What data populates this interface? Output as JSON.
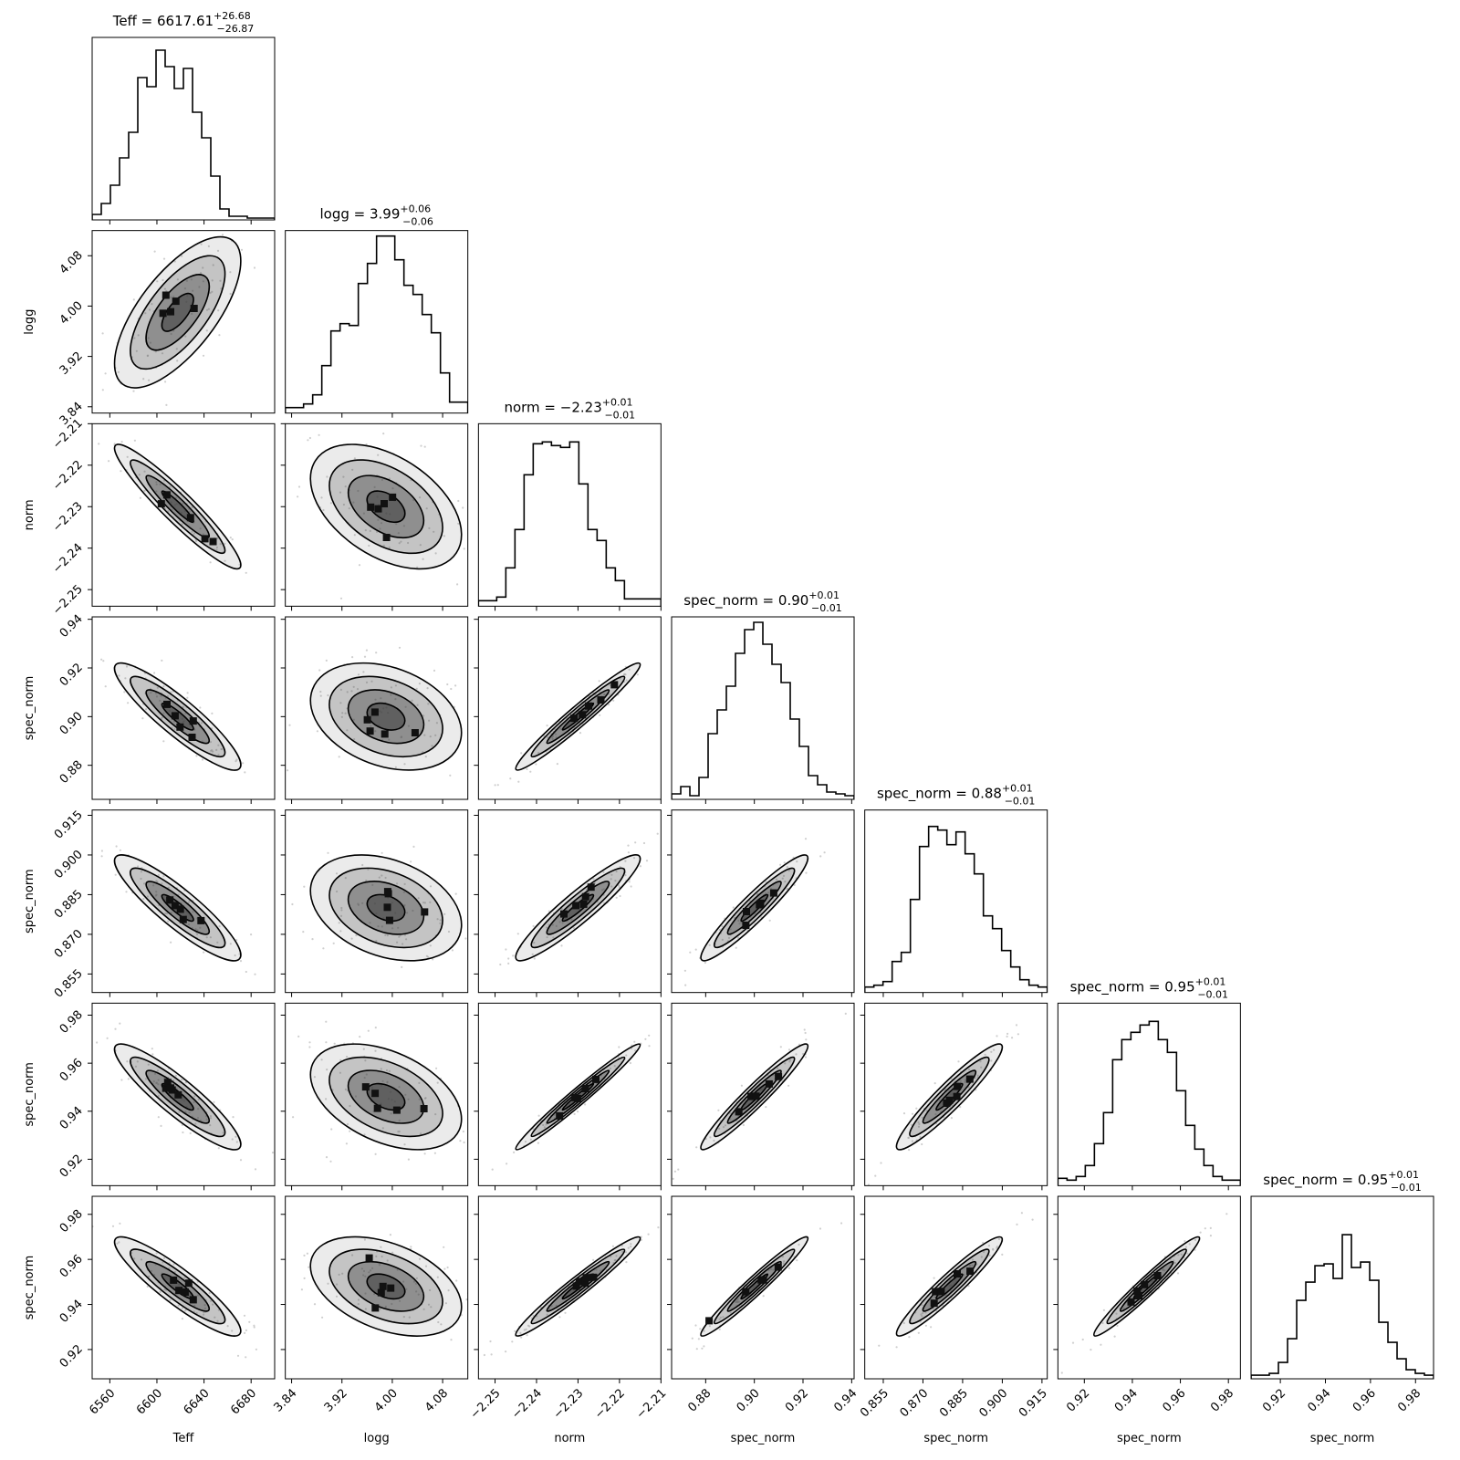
{
  "chart_data": {
    "type": "corner",
    "parameters": [
      {
        "key": "Teff",
        "label": "Teff",
        "title": "Teff = 6617.61",
        "err_plus": "+26.68",
        "err_minus": "−26.87",
        "range": [
          6545,
          6700
        ],
        "ticks": [
          6560,
          6600,
          6640,
          6680
        ],
        "tick_labels": [
          "6560",
          "6600",
          "6640",
          "6680"
        ],
        "median": 6617.61,
        "sigma": 26.8
      },
      {
        "key": "logg",
        "label": "logg",
        "title": "logg = 3.99",
        "err_plus": "+0.06",
        "err_minus": "−0.06",
        "range": [
          3.83,
          4.12
        ],
        "ticks": [
          3.84,
          3.92,
          4.0,
          4.08
        ],
        "tick_labels": [
          "3.84",
          "3.92",
          "4.00",
          "4.08"
        ],
        "median": 3.99,
        "sigma": 0.06
      },
      {
        "key": "norm",
        "label": "norm",
        "title": "norm = −2.23",
        "err_plus": "+0.01",
        "err_minus": "−0.01",
        "range": [
          -2.254,
          -2.21
        ],
        "ticks": [
          -2.25,
          -2.24,
          -2.23,
          -2.22,
          -2.21
        ],
        "tick_labels": [
          "−2.25",
          "−2.24",
          "−2.23",
          "−2.22",
          "−2.21"
        ],
        "median": -2.23,
        "sigma": 0.0075
      },
      {
        "key": "sn1",
        "label": "spec_norm",
        "title": "spec_norm = 0.90",
        "err_plus": "+0.01",
        "err_minus": "−0.01",
        "range": [
          0.866,
          0.941
        ],
        "ticks": [
          0.88,
          0.9,
          0.92,
          0.94
        ],
        "tick_labels": [
          "0.88",
          "0.90",
          "0.92",
          "0.94"
        ],
        "median": 0.9,
        "sigma": 0.011
      },
      {
        "key": "sn2",
        "label": "spec_norm",
        "title": "spec_norm = 0.88",
        "err_plus": "+0.01",
        "err_minus": "−0.01",
        "range": [
          0.848,
          0.917
        ],
        "ticks": [
          0.855,
          0.87,
          0.885,
          0.9,
          0.915
        ],
        "tick_labels": [
          "0.855",
          "0.870",
          "0.885",
          "0.900",
          "0.915"
        ],
        "median": 0.88,
        "sigma": 0.01
      },
      {
        "key": "sn3",
        "label": "spec_norm",
        "title": "spec_norm = 0.95",
        "err_plus": "+0.01",
        "err_minus": "−0.01",
        "range": [
          0.909,
          0.985
        ],
        "ticks": [
          0.92,
          0.94,
          0.96,
          0.98
        ],
        "tick_labels": [
          "0.92",
          "0.94",
          "0.96",
          "0.98"
        ],
        "median": 0.946,
        "sigma": 0.011
      },
      {
        "key": "sn4",
        "label": "spec_norm",
        "title": "spec_norm = 0.95",
        "err_plus": "+0.01",
        "err_minus": "−0.01",
        "range": [
          0.907,
          0.988
        ],
        "ticks": [
          0.92,
          0.94,
          0.96,
          0.98
        ],
        "tick_labels": [
          "0.92",
          "0.94",
          "0.96",
          "0.98"
        ],
        "median": 0.948,
        "sigma": 0.011
      }
    ],
    "histograms": {
      "Teff": [
        0.03,
        0.09,
        0.19,
        0.34,
        0.48,
        0.78,
        0.73,
        0.93,
        0.84,
        0.72,
        0.83,
        0.59,
        0.45,
        0.24,
        0.06,
        0.02,
        0.02,
        0.01,
        0.01,
        0.01
      ],
      "logg": [
        0.03,
        0.03,
        0.05,
        0.1,
        0.26,
        0.45,
        0.49,
        0.48,
        0.71,
        0.82,
        0.97,
        0.97,
        0.84,
        0.7,
        0.65,
        0.54,
        0.44,
        0.22,
        0.06,
        0.06
      ],
      "norm": [
        0.03,
        0.03,
        0.05,
        0.21,
        0.42,
        0.72,
        0.89,
        0.9,
        0.88,
        0.87,
        0.9,
        0.67,
        0.42,
        0.36,
        0.21,
        0.14,
        0.04,
        0.04,
        0.04,
        0.04
      ],
      "sn1": [
        0.03,
        0.07,
        0.02,
        0.12,
        0.36,
        0.49,
        0.62,
        0.8,
        0.93,
        0.97,
        0.85,
        0.74,
        0.64,
        0.44,
        0.29,
        0.13,
        0.08,
        0.04,
        0.03,
        0.02
      ],
      "sn2": [
        0.03,
        0.04,
        0.06,
        0.17,
        0.22,
        0.51,
        0.8,
        0.91,
        0.89,
        0.81,
        0.88,
        0.76,
        0.65,
        0.42,
        0.35,
        0.23,
        0.14,
        0.07,
        0.04,
        0.03
      ],
      "sn3": [
        0.04,
        0.03,
        0.05,
        0.11,
        0.23,
        0.4,
        0.69,
        0.8,
        0.84,
        0.88,
        0.9,
        0.8,
        0.73,
        0.52,
        0.33,
        0.2,
        0.11,
        0.05,
        0.03,
        0.03
      ],
      "sn4": [
        0.02,
        0.02,
        0.03,
        0.09,
        0.22,
        0.43,
        0.53,
        0.62,
        0.63,
        0.55,
        0.79,
        0.61,
        0.64,
        0.54,
        0.31,
        0.2,
        0.11,
        0.05,
        0.03,
        0.02
      ]
    },
    "correlations": [
      [
        1.0,
        0.68,
        -0.94,
        -0.9,
        -0.89,
        -0.9,
        -0.9
      ],
      [
        0.68,
        1.0,
        -0.45,
        -0.3,
        -0.32,
        -0.42,
        -0.41
      ],
      [
        -0.94,
        -0.45,
        1.0,
        0.97,
        0.93,
        0.98,
        0.97
      ],
      [
        -0.9,
        -0.3,
        0.97,
        1.0,
        0.94,
        0.96,
        0.97
      ],
      [
        -0.89,
        -0.32,
        0.93,
        0.94,
        1.0,
        0.94,
        0.95
      ],
      [
        -0.9,
        -0.42,
        0.98,
        0.96,
        0.94,
        1.0,
        0.97
      ],
      [
        -0.9,
        -0.41,
        0.97,
        0.97,
        0.95,
        0.97,
        1.0
      ]
    ],
    "contour_levels_sigma": [
      0.5,
      1.0,
      1.5,
      2.0
    ],
    "colors": {
      "line": "#000000",
      "density": "#3a3a3a",
      "points": "#bbbbbb",
      "frame": "#000000"
    },
    "grid": false
  }
}
